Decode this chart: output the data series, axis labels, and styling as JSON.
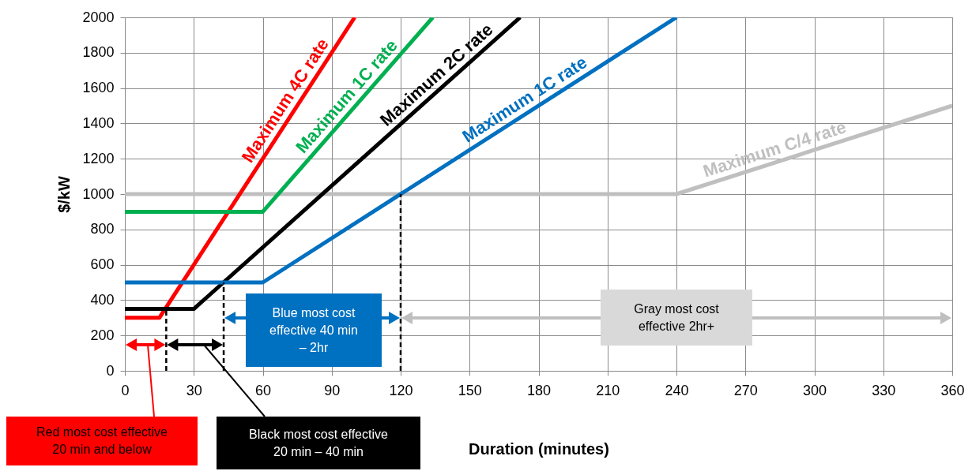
{
  "chart_data": {
    "type": "line",
    "xlabel": "Duration (minutes)",
    "ylabel": "$/kW",
    "xlim": [
      0,
      360
    ],
    "xticks": [
      0,
      30,
      60,
      90,
      120,
      150,
      180,
      210,
      240,
      270,
      300,
      330,
      360
    ],
    "ylim": [
      0,
      2000
    ],
    "yticks": [
      0,
      200,
      400,
      600,
      800,
      1000,
      1200,
      1400,
      1600,
      1800,
      2000
    ],
    "grid": true,
    "series": [
      {
        "name": "Maximum C/4 rate",
        "color": "#bfbfbf",
        "x": [
          0,
          240,
          360
        ],
        "values": [
          1000,
          1000,
          1500
        ]
      },
      {
        "name": "Maximum 4C rate",
        "color": "#ff0000",
        "x": [
          0,
          15,
          100
        ],
        "values": [
          300,
          300,
          2000
        ]
      },
      {
        "name": "Maximum 1C rate",
        "color": "#00b050",
        "x": [
          0,
          60,
          134
        ],
        "values": [
          900,
          900,
          2000
        ]
      },
      {
        "name": "Maximum 2C rate",
        "color": "#000000",
        "x": [
          0,
          30,
          172
        ],
        "values": [
          350,
          350,
          2000
        ]
      },
      {
        "name": "Maximum 1C rate",
        "color": "#0070c0",
        "x": [
          0,
          60,
          240
        ],
        "values": [
          500,
          500,
          2000
        ]
      },
      {
        "color": "#000000",
        "line_style": "dashed",
        "x": [
          18,
          18
        ],
        "values": [
          0,
          350
        ]
      },
      {
        "color": "#000000",
        "line_style": "dashed",
        "x": [
          43,
          43
        ],
        "values": [
          0,
          500
        ]
      },
      {
        "color": "#000000",
        "line_style": "dashed",
        "x": [
          120,
          120
        ],
        "values": [
          0,
          1000
        ]
      }
    ],
    "annotations": [
      "Red most cost effective 20 min and below",
      "Black most cost effective 20 min – 40 min",
      "Blue most cost effective 40 min – 2hr",
      "Gray most cost effective 2hr+"
    ]
  }
}
